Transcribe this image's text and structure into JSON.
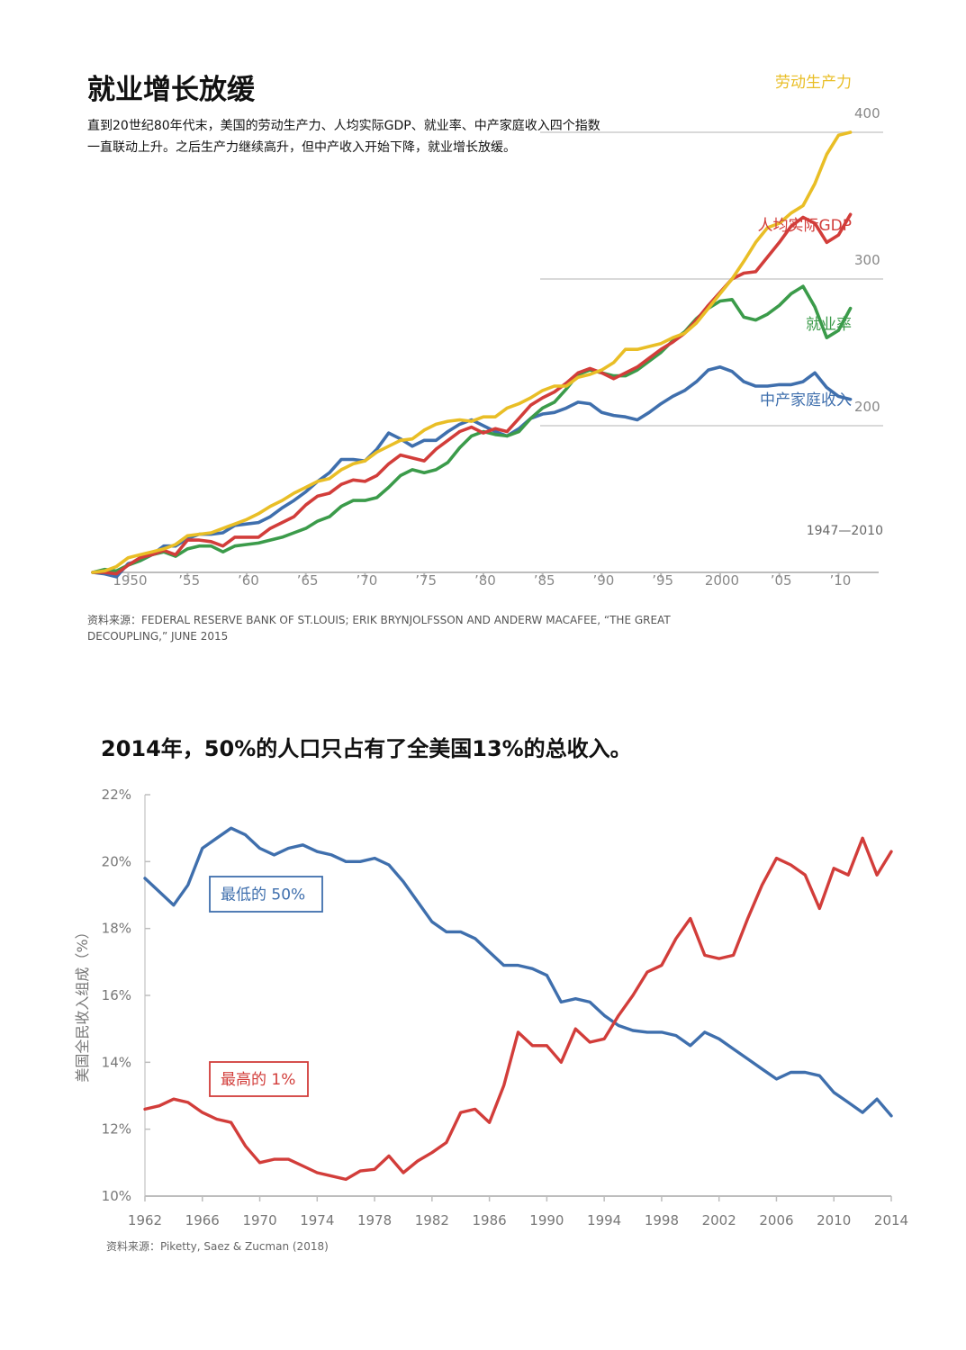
{
  "chart1": {
    "title": "就业增长放缓",
    "subtitle": "直到20世纪80年代末，美国的劳动生产力、人均实际GDP、就业率、中产家庭收入四个指数一直联动上升。之后生产力继续高升，但中产收入开始下降，就业增长放缓。",
    "period": "1947—2010",
    "source": "资料来源：FEDERAL RESERVE BANK OF ST.LOUIS; ERIK BRYNJOLFSSON AND ANDERW MACAFEE, “THE GREAT DECOUPLING,” JUNE 2015",
    "x_tick_labels": [
      "1950",
      "’55",
      "’60",
      "’65",
      "’70",
      "’75",
      "’80",
      "’85",
      "’90",
      "’95",
      "2000",
      "’05",
      "’10"
    ],
    "y_tick_labels": [
      "200",
      "300",
      "400"
    ]
  },
  "chart2": {
    "title": "2014年，50%的人口只占有了全美国13%的总收入。",
    "ylabel": "美国全民收入组成（%）",
    "source": "资料来源：Piketty, Saez & Zucman (2018)",
    "y_tick_labels": [
      "10%",
      "12%",
      "14%",
      "16%",
      "18%",
      "20%",
      "22%"
    ],
    "x_tick_labels": [
      "1962",
      "1966",
      "1970",
      "1974",
      "1978",
      "1982",
      "1986",
      "1990",
      "1994",
      "1998",
      "2002",
      "2006",
      "2010",
      "2014"
    ]
  },
  "chart_data": [
    {
      "type": "line",
      "title": "就业增长放缓",
      "xlim": [
        1947,
        2011
      ],
      "ylim": [
        100,
        420
      ],
      "x_ticks": [
        1950,
        1955,
        1960,
        1965,
        1970,
        1975,
        1980,
        1985,
        1990,
        1995,
        2000,
        2005,
        2010
      ],
      "y_ticks": [
        200,
        300,
        400
      ],
      "grid": true,
      "series": [
        {
          "name": "劳动生产力",
          "color": "#E9BE26",
          "x": [
            1947,
            1948,
            1949,
            1950,
            1951,
            1952,
            1953,
            1954,
            1955,
            1956,
            1957,
            1958,
            1959,
            1960,
            1961,
            1962,
            1963,
            1964,
            1965,
            1966,
            1967,
            1968,
            1969,
            1970,
            1971,
            1972,
            1973,
            1974,
            1975,
            1976,
            1977,
            1978,
            1979,
            1980,
            1981,
            1982,
            1983,
            1984,
            1985,
            1986,
            1987,
            1988,
            1989,
            1990,
            1991,
            1992,
            1993,
            1994,
            1995,
            1996,
            1997,
            1998,
            1999,
            2000,
            2001,
            2002,
            2003,
            2004,
            2005,
            2006,
            2007,
            2008,
            2009,
            2010,
            2011
          ],
          "values": [
            100,
            101,
            104,
            110,
            112,
            114,
            116,
            119,
            125,
            126,
            127,
            130,
            133,
            136,
            140,
            145,
            149,
            154,
            158,
            162,
            164,
            170,
            174,
            176,
            182,
            186,
            190,
            191,
            197,
            201,
            203,
            204,
            203,
            206,
            206,
            212,
            215,
            219,
            224,
            227,
            227,
            233,
            235,
            238,
            243,
            252,
            252,
            254,
            256,
            260,
            263,
            270,
            280,
            290,
            300,
            312,
            325,
            335,
            338,
            345,
            350,
            365,
            385,
            398,
            400
          ]
        },
        {
          "name": "人均实际GDP",
          "color": "#D23D3A",
          "x": [
            1947,
            1948,
            1949,
            1950,
            1951,
            1952,
            1953,
            1954,
            1955,
            1956,
            1957,
            1958,
            1959,
            1960,
            1961,
            1962,
            1963,
            1964,
            1965,
            1966,
            1967,
            1968,
            1969,
            1970,
            1971,
            1972,
            1973,
            1974,
            1975,
            1976,
            1977,
            1978,
            1979,
            1980,
            1981,
            1982,
            1983,
            1984,
            1985,
            1986,
            1987,
            1988,
            1989,
            1990,
            1991,
            1992,
            1993,
            1994,
            1995,
            1996,
            1997,
            1998,
            1999,
            2000,
            2001,
            2002,
            2003,
            2004,
            2005,
            2006,
            2007,
            2008,
            2009,
            2010,
            2011
          ],
          "values": [
            100,
            100,
            99,
            105,
            110,
            112,
            115,
            112,
            122,
            122,
            121,
            118,
            124,
            124,
            124,
            130,
            134,
            138,
            146,
            152,
            154,
            160,
            163,
            162,
            166,
            174,
            180,
            178,
            176,
            184,
            190,
            196,
            199,
            195,
            198,
            196,
            205,
            214,
            219,
            223,
            229,
            236,
            239,
            236,
            232,
            236,
            240,
            246,
            252,
            257,
            263,
            272,
            282,
            291,
            300,
            304,
            305,
            315,
            325,
            336,
            342,
            338,
            325,
            330,
            344
          ]
        },
        {
          "name": "就业率",
          "color": "#3B9B4A",
          "x": [
            1947,
            1948,
            1949,
            1950,
            1951,
            1952,
            1953,
            1954,
            1955,
            1956,
            1957,
            1958,
            1959,
            1960,
            1961,
            1962,
            1963,
            1964,
            1965,
            1966,
            1967,
            1968,
            1969,
            1970,
            1971,
            1972,
            1973,
            1974,
            1975,
            1976,
            1977,
            1978,
            1979,
            1980,
            1981,
            1982,
            1983,
            1984,
            1985,
            1986,
            1987,
            1988,
            1989,
            1990,
            1991,
            1992,
            1993,
            1994,
            1995,
            1996,
            1997,
            1998,
            1999,
            2000,
            2001,
            2002,
            2003,
            2004,
            2005,
            2006,
            2007,
            2008,
            2009,
            2010,
            2011
          ],
          "values": [
            100,
            102,
            101,
            105,
            108,
            112,
            114,
            111,
            116,
            118,
            118,
            114,
            118,
            119,
            120,
            122,
            124,
            127,
            130,
            135,
            138,
            145,
            149,
            149,
            151,
            158,
            166,
            170,
            168,
            170,
            175,
            185,
            193,
            196,
            194,
            193,
            196,
            205,
            212,
            216,
            225,
            235,
            238,
            236,
            234,
            234,
            238,
            244,
            250,
            258,
            264,
            273,
            280,
            285,
            286,
            274,
            272,
            276,
            282,
            290,
            295,
            281,
            260,
            265,
            280
          ]
        },
        {
          "name": "中产家庭收入",
          "color": "#3F6FAD",
          "x": [
            1947,
            1948,
            1949,
            1950,
            1951,
            1952,
            1953,
            1954,
            1955,
            1956,
            1957,
            1958,
            1959,
            1960,
            1961,
            1962,
            1963,
            1964,
            1965,
            1966,
            1967,
            1968,
            1969,
            1970,
            1971,
            1972,
            1973,
            1974,
            1975,
            1976,
            1977,
            1978,
            1979,
            1980,
            1981,
            1982,
            1983,
            1984,
            1985,
            1986,
            1987,
            1988,
            1989,
            1990,
            1991,
            1992,
            1993,
            1994,
            1995,
            1996,
            1997,
            1998,
            1999,
            2000,
            2001,
            2002,
            2003,
            2004,
            2005,
            2006,
            2007,
            2008,
            2009,
            2010,
            2011
          ],
          "values": [
            100,
            99,
            97,
            106,
            108,
            112,
            118,
            118,
            123,
            126,
            126,
            127,
            132,
            133,
            134,
            138,
            144,
            149,
            155,
            162,
            168,
            177,
            177,
            176,
            184,
            195,
            191,
            186,
            190,
            190,
            196,
            201,
            204,
            200,
            196,
            193,
            198,
            205,
            208,
            209,
            212,
            216,
            215,
            209,
            207,
            206,
            204,
            209,
            215,
            220,
            224,
            230,
            238,
            240,
            237,
            230,
            227,
            227,
            228,
            228,
            230,
            236,
            226,
            220,
            218
          ]
        }
      ]
    },
    {
      "type": "line",
      "title": "2014年，50%的人口只占有了全美国13%的总收入。",
      "ylabel": "美国全民收入组成（%）",
      "xlim": [
        1962,
        2014
      ],
      "ylim": [
        10,
        22
      ],
      "x_ticks": [
        1962,
        1966,
        1970,
        1974,
        1978,
        1982,
        1986,
        1990,
        1994,
        1998,
        2002,
        2006,
        2010,
        2014
      ],
      "y_ticks": [
        10,
        12,
        14,
        16,
        18,
        20,
        22
      ],
      "series": [
        {
          "name": "最低的 50%",
          "color": "#3F6FAD",
          "x": [
            1962,
            1963,
            1964,
            1965,
            1966,
            1967,
            1968,
            1969,
            1970,
            1971,
            1972,
            1973,
            1974,
            1975,
            1976,
            1977,
            1978,
            1979,
            1980,
            1981,
            1982,
            1983,
            1984,
            1985,
            1986,
            1987,
            1988,
            1989,
            1990,
            1991,
            1992,
            1993,
            1994,
            1995,
            1996,
            1997,
            1998,
            1999,
            2000,
            2001,
            2002,
            2003,
            2004,
            2005,
            2006,
            2007,
            2008,
            2009,
            2010,
            2011,
            2012,
            2013,
            2014
          ],
          "values": [
            19.5,
            19.1,
            18.7,
            19.3,
            20.4,
            20.7,
            21.0,
            20.8,
            20.4,
            20.2,
            20.4,
            20.5,
            20.3,
            20.2,
            20.0,
            20.0,
            20.1,
            19.9,
            19.4,
            18.8,
            18.2,
            17.9,
            17.9,
            17.7,
            17.3,
            16.9,
            16.9,
            16.8,
            16.6,
            15.8,
            15.9,
            15.8,
            15.4,
            15.1,
            14.95,
            14.9,
            14.9,
            14.8,
            14.5,
            14.9,
            14.7,
            14.4,
            14.1,
            13.8,
            13.5,
            13.7,
            13.7,
            13.6,
            13.1,
            12.8,
            12.5,
            12.9,
            12.4
          ]
        },
        {
          "name": "最高的 1%",
          "color": "#D23D3A",
          "x": [
            1962,
            1963,
            1964,
            1965,
            1966,
            1967,
            1968,
            1969,
            1970,
            1971,
            1972,
            1973,
            1974,
            1975,
            1976,
            1977,
            1978,
            1979,
            1980,
            1981,
            1982,
            1983,
            1984,
            1985,
            1986,
            1987,
            1988,
            1989,
            1990,
            1991,
            1992,
            1993,
            1994,
            1995,
            1996,
            1997,
            1998,
            1999,
            2000,
            2001,
            2002,
            2003,
            2004,
            2005,
            2006,
            2007,
            2008,
            2009,
            2010,
            2011,
            2012,
            2013,
            2014
          ],
          "values": [
            12.6,
            12.7,
            12.9,
            12.8,
            12.5,
            12.3,
            12.2,
            11.5,
            11.0,
            11.1,
            11.1,
            10.9,
            10.7,
            10.6,
            10.5,
            10.75,
            10.8,
            11.2,
            10.7,
            11.05,
            11.3,
            11.6,
            12.5,
            12.6,
            12.2,
            13.3,
            14.9,
            14.5,
            14.5,
            14.0,
            15.0,
            14.6,
            14.7,
            15.4,
            16.0,
            16.7,
            16.9,
            17.7,
            18.3,
            17.2,
            17.1,
            17.2,
            18.3,
            19.3,
            20.1,
            19.9,
            19.6,
            18.6,
            19.8,
            19.6,
            20.7,
            19.6,
            20.3
          ]
        }
      ]
    }
  ]
}
